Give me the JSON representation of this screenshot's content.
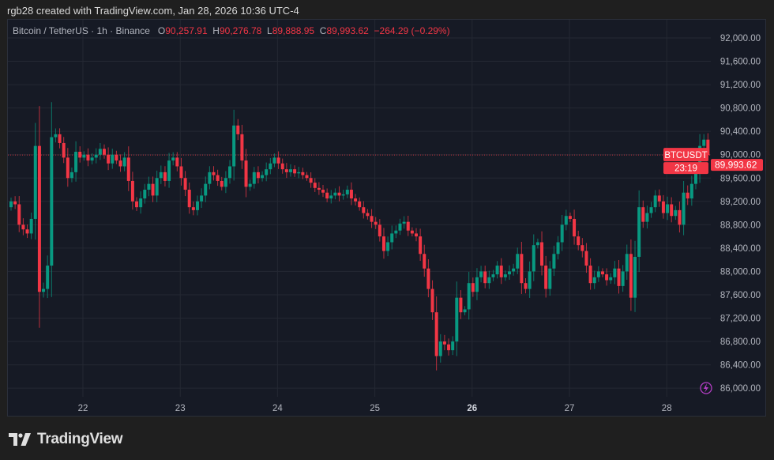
{
  "credit": "rgb28 created with TradingView.com, Jan 28, 2026 10:36 UTC-4",
  "legend": {
    "symbol": "Bitcoin / TetherUS · 1h · Binance",
    "o_label": "O",
    "o": "90,257.91",
    "h_label": "H",
    "h": "90,276.78",
    "l_label": "L",
    "l": "89,888.95",
    "c_label": "C",
    "c": "89,993.62",
    "change": "−264.29 (−0.29%)"
  },
  "price_tag": {
    "symbol": "BTCUSDT",
    "price": "89,993.62",
    "countdown": "23:19"
  },
  "logo": "TradingView",
  "colors": {
    "up": "#089981",
    "down": "#f23645",
    "background": "#161a25",
    "grid": "#242833",
    "text": "#b2b5be"
  },
  "chart_data": {
    "type": "candlestick",
    "interval": "1h",
    "first_candle": "Jan 21 06:00",
    "x_ticks": [
      "22",
      "23",
      "24",
      "25",
      "26",
      "27",
      "28"
    ],
    "y_ticks": [
      "92,000.00",
      "91,600.00",
      "91,200.00",
      "90,800.00",
      "90,400.00",
      "90,000.00",
      "89,600.00",
      "89,200.00",
      "88,800.00",
      "88,400.00",
      "88,000.00",
      "87,600.00",
      "87,200.00",
      "86,800.00",
      "86,400.00",
      "86,000.00"
    ],
    "ylim": [
      85900,
      92300
    ],
    "last_price": 89993.62,
    "first_open": 89100,
    "closes": [
      89200,
      89150,
      88800,
      88720,
      88650,
      88900,
      90150,
      87650,
      87700,
      88100,
      90300,
      90350,
      90200,
      89950,
      89600,
      89700,
      90050,
      89950,
      90000,
      89900,
      89950,
      90000,
      90100,
      90000,
      89850,
      90000,
      89900,
      89800,
      89950,
      89550,
      89200,
      89100,
      89250,
      89400,
      89500,
      89300,
      89600,
      89700,
      89550,
      89900,
      89950,
      89800,
      89600,
      89400,
      89100,
      89050,
      89200,
      89300,
      89500,
      89700,
      89650,
      89550,
      89450,
      89600,
      89800,
      90500,
      90350,
      89900,
      89450,
      89500,
      89700,
      89600,
      89650,
      89750,
      89850,
      89950,
      89850,
      89750,
      89700,
      89750,
      89680,
      89700,
      89650,
      89600,
      89520,
      89430,
      89400,
      89350,
      89250,
      89300,
      89350,
      89300,
      89320,
      89400,
      89250,
      89200,
      89100,
      89000,
      88950,
      88850,
      88800,
      88600,
      88350,
      88500,
      88650,
      88700,
      88820,
      88850,
      88700,
      88650,
      88600,
      88300,
      88050,
      87700,
      87300,
      86550,
      86800,
      86750,
      86650,
      86800,
      87550,
      87300,
      87350,
      87800,
      87650,
      87900,
      88000,
      87800,
      87900,
      87950,
      88100,
      87900,
      87950,
      88000,
      88050,
      88300,
      87800,
      87700,
      88000,
      88450,
      88500,
      88100,
      87700,
      88050,
      88300,
      88500,
      88800,
      88950,
      88900,
      88600,
      88450,
      88350,
      88100,
      87800,
      87900,
      88000,
      87950,
      87850,
      87900,
      88050,
      87750,
      88000,
      88300,
      87550,
      88250,
      89100,
      88850,
      89000,
      89100,
      89300,
      89200,
      89000,
      89150,
      88950,
      89050,
      88800,
      89350,
      89250,
      89500,
      89700,
      90150,
      90257.91,
      89993.62
    ]
  }
}
